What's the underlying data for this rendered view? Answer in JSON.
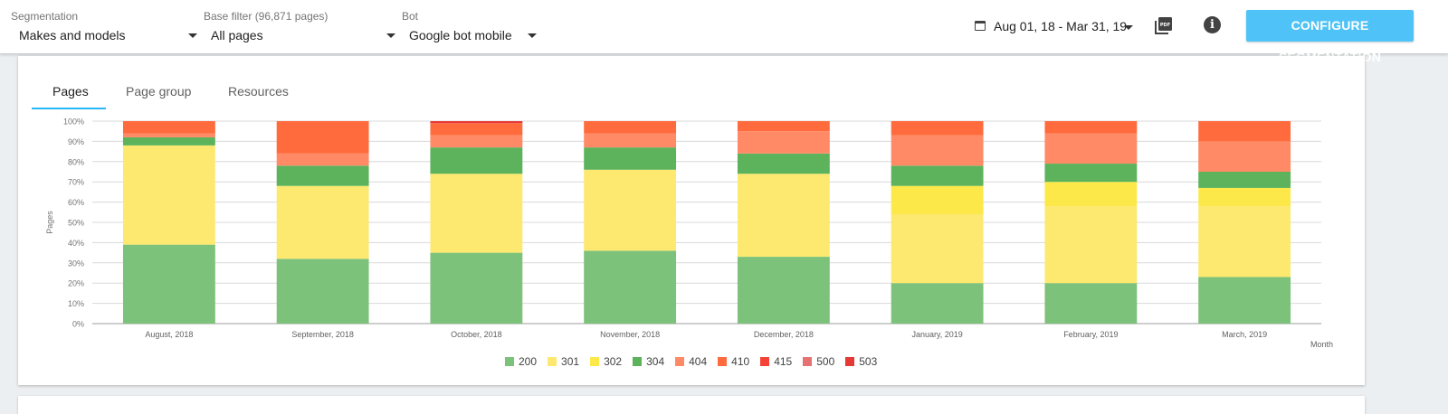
{
  "header": {
    "segmentation": {
      "label": "Segmentation",
      "value": "Makes and models"
    },
    "base_filter": {
      "label": "Base filter (96,871 pages)",
      "value": "All pages"
    },
    "bot": {
      "label": "Bot",
      "value": "Google bot mobile"
    },
    "date_range": "Aug 01, 18 - Mar 31, 19",
    "configure_label": "CONFIGURE SEGMENTATION",
    "icons": {
      "calendar": "calendar-icon",
      "pdf": "pdf-icon",
      "info": "info-icon"
    }
  },
  "tabs": [
    {
      "label": "Pages",
      "active": true
    },
    {
      "label": "Page group",
      "active": false
    },
    {
      "label": "Resources",
      "active": false
    }
  ],
  "chart_data": {
    "type": "bar",
    "stacked": true,
    "ylabel": "Pages",
    "xlabel": "Month",
    "ylim": [
      0,
      100
    ],
    "yticks": [
      "0%",
      "10%",
      "20%",
      "30%",
      "40%",
      "50%",
      "60%",
      "70%",
      "80%",
      "90%",
      "100%"
    ],
    "grid": true,
    "legend": "bottom",
    "categories": [
      "August, 2018",
      "September, 2018",
      "October, 2018",
      "November, 2018",
      "December, 2018",
      "January, 2019",
      "February, 2019",
      "March, 2019"
    ],
    "series": [
      {
        "name": "200",
        "color": "#7cc27a",
        "values": [
          39,
          32,
          35,
          36,
          33,
          20,
          20,
          23
        ]
      },
      {
        "name": "301",
        "color": "#fde96f",
        "values": [
          49,
          36,
          39,
          40,
          41,
          34,
          38,
          35
        ]
      },
      {
        "name": "302",
        "color": "#fde84a",
        "values": [
          0,
          0,
          0,
          0,
          0,
          14,
          12,
          9
        ]
      },
      {
        "name": "304",
        "color": "#5cb35c",
        "values": [
          4,
          10,
          13,
          11,
          10,
          10,
          9,
          8
        ]
      },
      {
        "name": "404",
        "color": "#ff8a65",
        "values": [
          2,
          6,
          6,
          7,
          11,
          15,
          15,
          15
        ]
      },
      {
        "name": "410",
        "color": "#ff6b3d",
        "values": [
          6,
          16,
          6,
          6,
          5,
          7,
          6,
          10
        ]
      },
      {
        "name": "415",
        "color": "#f44336",
        "values": [
          0,
          0,
          0,
          0,
          0,
          0,
          0,
          0
        ]
      },
      {
        "name": "500",
        "color": "#e57373",
        "values": [
          0,
          0,
          0,
          0,
          0,
          0,
          0,
          0
        ]
      },
      {
        "name": "503",
        "color": "#e53935",
        "values": [
          0,
          0,
          1,
          0,
          0,
          0,
          0,
          0
        ]
      }
    ]
  }
}
